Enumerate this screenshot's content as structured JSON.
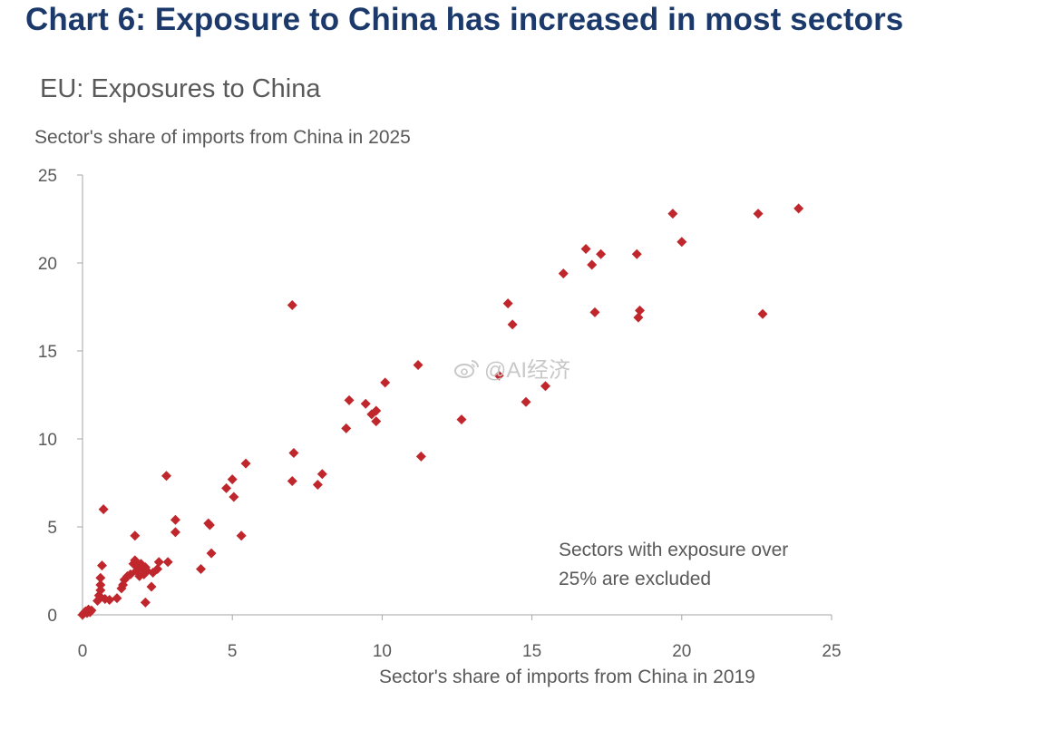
{
  "headline": "Chart 6: Exposure to China has increased in most sectors",
  "watermark": "@AI经济",
  "colors": {
    "headline": "#1b3a6b",
    "point": "#c0272d",
    "axis": "#a6a6a6",
    "text": "#595959"
  },
  "chart_data": {
    "type": "scatter",
    "title": "EU: Exposures to China",
    "ylabel": "Sector's share of imports from China in 2025",
    "xlabel": "Sector's share of imports from China in 2019",
    "xlim": [
      0,
      25
    ],
    "ylim": [
      0,
      25
    ],
    "xticks": [
      "0",
      "5",
      "10",
      "15",
      "20",
      "25"
    ],
    "yticks": [
      "0",
      "5",
      "10",
      "15",
      "20",
      "25"
    ],
    "grid": false,
    "annotation": [
      "Sectors with exposure over",
      "25% are excluded"
    ],
    "series": [
      {
        "name": "Sectors",
        "marker": "diamond",
        "points": [
          [
            0.0,
            0.0
          ],
          [
            0.05,
            0.1
          ],
          [
            0.1,
            0.2
          ],
          [
            0.15,
            0.1
          ],
          [
            0.2,
            0.3
          ],
          [
            0.25,
            0.15
          ],
          [
            0.3,
            0.25
          ],
          [
            0.5,
            0.8
          ],
          [
            0.55,
            1.1
          ],
          [
            0.6,
            1.4
          ],
          [
            0.6,
            1.7
          ],
          [
            0.6,
            2.1
          ],
          [
            0.65,
            2.8
          ],
          [
            0.7,
            6.0
          ],
          [
            0.75,
            0.9
          ],
          [
            0.9,
            0.85
          ],
          [
            1.15,
            0.95
          ],
          [
            1.3,
            1.5
          ],
          [
            1.35,
            1.7
          ],
          [
            1.4,
            2.0
          ],
          [
            1.5,
            2.2
          ],
          [
            1.6,
            2.3
          ],
          [
            1.7,
            2.9
          ],
          [
            1.75,
            3.1
          ],
          [
            1.75,
            4.5
          ],
          [
            1.8,
            2.5
          ],
          [
            1.85,
            2.7
          ],
          [
            1.9,
            2.2
          ],
          [
            1.95,
            2.9
          ],
          [
            2.0,
            2.6
          ],
          [
            2.05,
            2.3
          ],
          [
            2.1,
            2.7
          ],
          [
            2.15,
            2.5
          ],
          [
            2.1,
            0.7
          ],
          [
            2.3,
            1.6
          ],
          [
            2.35,
            2.4
          ],
          [
            2.5,
            2.6
          ],
          [
            2.55,
            3.0
          ],
          [
            2.8,
            7.9
          ],
          [
            2.85,
            3.0
          ],
          [
            3.1,
            5.4
          ],
          [
            3.1,
            4.7
          ],
          [
            3.95,
            2.6
          ],
          [
            4.2,
            5.2
          ],
          [
            4.25,
            5.1
          ],
          [
            4.3,
            3.5
          ],
          [
            4.8,
            7.2
          ],
          [
            5.0,
            7.7
          ],
          [
            5.05,
            6.7
          ],
          [
            5.3,
            4.5
          ],
          [
            5.45,
            8.6
          ],
          [
            7.0,
            17.6
          ],
          [
            7.0,
            7.6
          ],
          [
            7.05,
            9.2
          ],
          [
            7.85,
            7.4
          ],
          [
            8.0,
            8.0
          ],
          [
            8.8,
            10.6
          ],
          [
            8.9,
            12.2
          ],
          [
            9.45,
            12.0
          ],
          [
            9.65,
            11.4
          ],
          [
            9.8,
            11.6
          ],
          [
            9.8,
            11.0
          ],
          [
            10.1,
            13.2
          ],
          [
            11.2,
            14.2
          ],
          [
            11.3,
            9.0
          ],
          [
            12.65,
            11.1
          ],
          [
            13.9,
            13.6
          ],
          [
            14.2,
            17.7
          ],
          [
            14.35,
            16.5
          ],
          [
            14.8,
            12.1
          ],
          [
            15.45,
            13.0
          ],
          [
            16.05,
            19.4
          ],
          [
            16.8,
            20.8
          ],
          [
            17.0,
            19.9
          ],
          [
            17.1,
            17.2
          ],
          [
            17.3,
            20.5
          ],
          [
            18.5,
            20.5
          ],
          [
            18.55,
            16.9
          ],
          [
            18.6,
            17.3
          ],
          [
            19.7,
            22.8
          ],
          [
            20.0,
            21.2
          ],
          [
            22.55,
            22.8
          ],
          [
            22.7,
            17.1
          ],
          [
            23.9,
            23.1
          ]
        ]
      }
    ]
  }
}
